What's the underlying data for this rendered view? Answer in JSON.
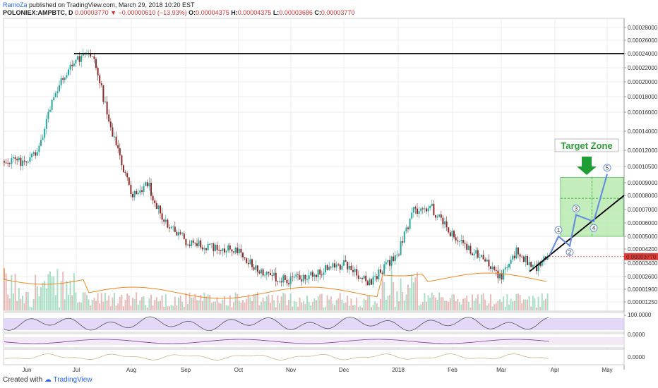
{
  "header": {
    "author": "RamoZa",
    "published_text": " published on TradingView.com, March 29, 2018 10:20 EST",
    "symbol": "POLONIEX:AMPBTC, D",
    "last": "0.00003770",
    "change": "−0.00000610 (−13.93%)",
    "o_label": "O:",
    "o": "0.00004375",
    "h_label": "H:",
    "h": "0.00004375",
    "l_label": "L:",
    "l": "0.00003686",
    "c_label": "C:",
    "c": "0.00003770"
  },
  "footer": {
    "created_with": "Created with",
    "brand": "TradingView"
  },
  "annotation": {
    "target_zone": "Target Zone",
    "wave_labels": [
      "1",
      "2",
      "3",
      "4",
      "5"
    ]
  },
  "colors": {
    "up": "#26a69a",
    "down": "#8b2a2a",
    "resistance": "#000000",
    "support": "#000000",
    "wave": "#6b8fe0",
    "zone_fill": "#b9ecb0",
    "zone_border": "#3fae49",
    "target_text": "#2e9e3a",
    "price_tag": "#e53935",
    "rsi_band": "#d8c8f5"
  },
  "chart_data": {
    "type": "candlestick",
    "price_axis_ticks": [
      "0.00028000",
      "0.00026000",
      "0.00024000",
      "0.00022000",
      "0.00020000",
      "0.00018000",
      "0.00016000",
      "0.00014000",
      "0.00012000",
      "0.00010500",
      "0.00009000",
      "0.00008000",
      "0.00007000",
      "0.00006000",
      "0.00005000",
      "0.00004200",
      "0.00003400",
      "0.00002600",
      "0.00001900",
      "0.00001250"
    ],
    "last_price_tag": "0.00003770",
    "rsi_ticks": [
      "100.0000",
      "0.0000"
    ],
    "osc_ticks": [
      "0.0000"
    ],
    "x_ticks": [
      "Jun",
      "Jul",
      "Aug",
      "Sep",
      "Oct",
      "Nov",
      "Dec",
      "2018",
      "Feb",
      "Mar",
      "Apr",
      "May"
    ],
    "path_anchors": [
      {
        "t": "Jun",
        "v": 0.00011
      },
      {
        "t": "Jun",
        "v": 0.00012
      },
      {
        "t": "Jun",
        "v": 0.00016
      },
      {
        "t": "Jun",
        "v": 0.0002
      },
      {
        "t": "Jul",
        "v": 0.00023
      },
      {
        "t": "Jul",
        "v": 0.00024
      },
      {
        "t": "Jul",
        "v": 0.00015
      },
      {
        "t": "Aug",
        "v": 8e-05
      },
      {
        "t": "Aug",
        "v": 9e-05
      },
      {
        "t": "Aug",
        "v": 6e-05
      },
      {
        "t": "Sep",
        "v": 4.7e-05
      },
      {
        "t": "Oct",
        "v": 4e-05
      },
      {
        "t": "Oct",
        "v": 2.8e-05
      },
      {
        "t": "Nov",
        "v": 2.4e-05
      },
      {
        "t": "Dec",
        "v": 3.3e-05
      },
      {
        "t": "Dec",
        "v": 2.2e-05
      },
      {
        "t": "2018",
        "v": 4e-05
      },
      {
        "t": "2018",
        "v": 7e-05
      },
      {
        "t": "2018",
        "v": 7.2e-05
      },
      {
        "t": "Feb",
        "v": 5e-05
      },
      {
        "t": "Feb",
        "v": 4e-05
      },
      {
        "t": "Mar",
        "v": 2.6e-05
      },
      {
        "t": "Mar",
        "v": 4.2e-05
      },
      {
        "t": "Mar",
        "v": 3e-05
      },
      {
        "t": "Apr",
        "v": 4.2e-05
      },
      {
        "t": "Apr",
        "v": 3.77e-05
      }
    ],
    "resistance_level": 0.00024,
    "support_line": [
      {
        "t": "Mar",
        "v": 2.9e-05
      },
      {
        "t": "May",
        "v": 8e-05
      }
    ],
    "target_zone": {
      "from": "Apr",
      "to": "May",
      "low": 5e-05,
      "high": 9.5e-05
    },
    "elliott_wave": [
      {
        "label": "1",
        "v": 5e-05
      },
      {
        "label": "2",
        "v": 4.4e-05
      },
      {
        "label": "3",
        "v": 6.6e-05
      },
      {
        "label": "4",
        "v": 6.1e-05
      },
      {
        "label": "5",
        "v": 9.8e-05
      }
    ]
  }
}
